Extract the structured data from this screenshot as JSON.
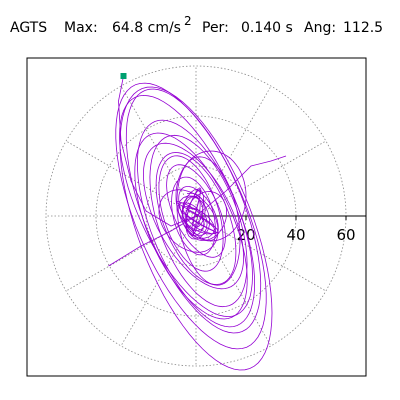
{
  "header": {
    "station": "AGTS",
    "max_label": "Max:",
    "max_value": "64.8 cm/s",
    "max_exp": "2",
    "per_label": "Per:",
    "per_value": "0.140 s",
    "ang_label": "Ang:",
    "ang_value": "112.5"
  },
  "colors": {
    "trace": "#9400d3",
    "marker": "#00a070",
    "grid": "#888888",
    "axis": "#000000"
  },
  "chart_data": {
    "type": "polar-orbit",
    "title": "",
    "radial_ticks": [
      20,
      40,
      60
    ],
    "radial_tick_labels": [
      "20",
      "40",
      "60"
    ],
    "rlim": [
      0,
      70
    ],
    "grid": true,
    "angular_grid_step_deg": 30,
    "peak_value": 64.8,
    "peak_units": "cm/s2",
    "peak_angle_deg": 112.5,
    "start_marker": {
      "x": -29,
      "y": 56
    },
    "orbit_loops": [
      {
        "a": 8,
        "b": 5,
        "rot": 110,
        "cx": 0,
        "cy": 0
      },
      {
        "a": 12,
        "b": 6,
        "rot": 120,
        "cx": 1,
        "cy": 1
      },
      {
        "a": 16,
        "b": 8,
        "rot": 105,
        "cx": -1,
        "cy": 0
      },
      {
        "a": 20,
        "b": 9,
        "rot": 115,
        "cx": 0,
        "cy": 2
      },
      {
        "a": 24,
        "b": 11,
        "rot": 108,
        "cx": -2,
        "cy": 1
      },
      {
        "a": 28,
        "b": 13,
        "rot": 112,
        "cx": 0,
        "cy": -1
      },
      {
        "a": 32,
        "b": 15,
        "rot": 118,
        "cx": -1,
        "cy": 0
      },
      {
        "a": 36,
        "b": 16,
        "rot": 110,
        "cx": 1,
        "cy": -2
      },
      {
        "a": 40,
        "b": 17,
        "rot": 114,
        "cx": -2,
        "cy": -4
      },
      {
        "a": 44,
        "b": 18,
        "rot": 112,
        "cx": 0,
        "cy": -3
      },
      {
        "a": 48,
        "b": 19,
        "rot": 115,
        "cx": -4,
        "cy": 4
      },
      {
        "a": 52,
        "b": 20,
        "rot": 112,
        "cx": -1,
        "cy": 2
      },
      {
        "a": 57,
        "b": 22,
        "rot": 113,
        "cx": -2,
        "cy": 0
      },
      {
        "a": 60,
        "b": 23,
        "rot": 111,
        "cx": 0,
        "cy": -5
      },
      {
        "a": 18,
        "b": 14,
        "rot": 90,
        "cx": 6,
        "cy": 8
      },
      {
        "a": 26,
        "b": 12,
        "rot": 100,
        "cx": 5,
        "cy": -2
      },
      {
        "a": 10,
        "b": 8,
        "rot": 70,
        "cx": 4,
        "cy": 0
      },
      {
        "a": 14,
        "b": 10,
        "rot": 130,
        "cx": -3,
        "cy": -2
      }
    ],
    "tail_path": [
      [
        -29,
        56
      ],
      [
        -31,
        46
      ],
      [
        -30,
        30
      ],
      [
        -26,
        14
      ],
      [
        -20,
        2
      ],
      [
        -10,
        -4
      ],
      [
        0,
        0
      ]
    ],
    "spike_path": [
      [
        -35,
        -20
      ],
      [
        -22,
        -12
      ],
      [
        -10,
        -6
      ],
      [
        0,
        0
      ],
      [
        12,
        10
      ],
      [
        22,
        20
      ],
      [
        30,
        22
      ],
      [
        36,
        24
      ]
    ]
  }
}
